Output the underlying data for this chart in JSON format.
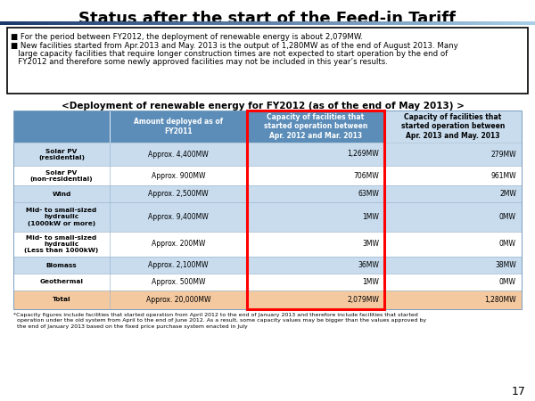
{
  "title": "Status after the start of the Feed-in Tariff",
  "title_fontsize": 13,
  "bullet1": "■ For the period between FY2012, the deployment of renewable energy is about 2,079MW.",
  "bullet2_line1": "■ New facilities started from Apr.2013 and May. 2013 is the output of 1,280MW as of the end of August 2013. Many",
  "bullet2_line2": "   large capacity facilities that require longer construction times are not expected to start operation by the end of",
  "bullet2_line3": "   FY2012 and therefore some newly approved facilities may not be included in this year’s results.",
  "table_title": "<Deployment of renewable energy for FY2012 (as of the end of May 2013) >",
  "col_headers": [
    "Amount deployed as of\nFY2011",
    "Capacity of facilities that\nstarted operation between\nApr. 2012 and Mar. 2013",
    "Capacity of facilities that\nstarted operation between\nApr. 2013 and May. 2013"
  ],
  "row_labels": [
    "Solar PV\n(residential)",
    "Solar PV\n(non-residential)",
    "Wind",
    "Mid- to small-sized\nhydraulic\n(1000kW or more)",
    "Mid- to small-sized\nhydraulic\n(Less than 1000kW)",
    "Biomass",
    "Geothermal",
    "Total"
  ],
  "col1_values": [
    "Approx. 4,400MW",
    "Approx. 900MW",
    "Approx. 2,500MW",
    "Approx. 9,400MW",
    "Approx. 200MW",
    "Approx. 2,100MW",
    "Approx. 500MW",
    "Approx. 20,000MW"
  ],
  "col2_values": [
    "1,269MW",
    "706MW",
    "63MW",
    "1MW",
    "3MW",
    "36MW",
    "1MW",
    "2,079MW"
  ],
  "col3_values": [
    "279MW",
    "961MW",
    "2MW",
    "0MW",
    "0MW",
    "38MW",
    "0MW",
    "1,280MW"
  ],
  "header_bg": "#5b8db8",
  "header_text": "#ffffff",
  "row_bg_light": "#c8dcee",
  "row_bg_white": "#ffffff",
  "total_row_bg": "#f5c9a0",
  "col3_header_bg": "#c8dcee",
  "footnote_line1": "*Capacity figures include facilities that started operation from April 2012 to the end of January 2013 and therefore include facilities that started",
  "footnote_line2": "  operation under the old system from April to the end of June 2012. As a result, some capacity values may be bigger than the values approved by",
  "footnote_line3": "  the end of January 2013 based on the fixed price purchase system enacted in July",
  "page_number": "17",
  "top_bar_left_color": "#1a3a6b",
  "top_bar_right_color": "#a8d0e8",
  "background_color": "#ffffff"
}
